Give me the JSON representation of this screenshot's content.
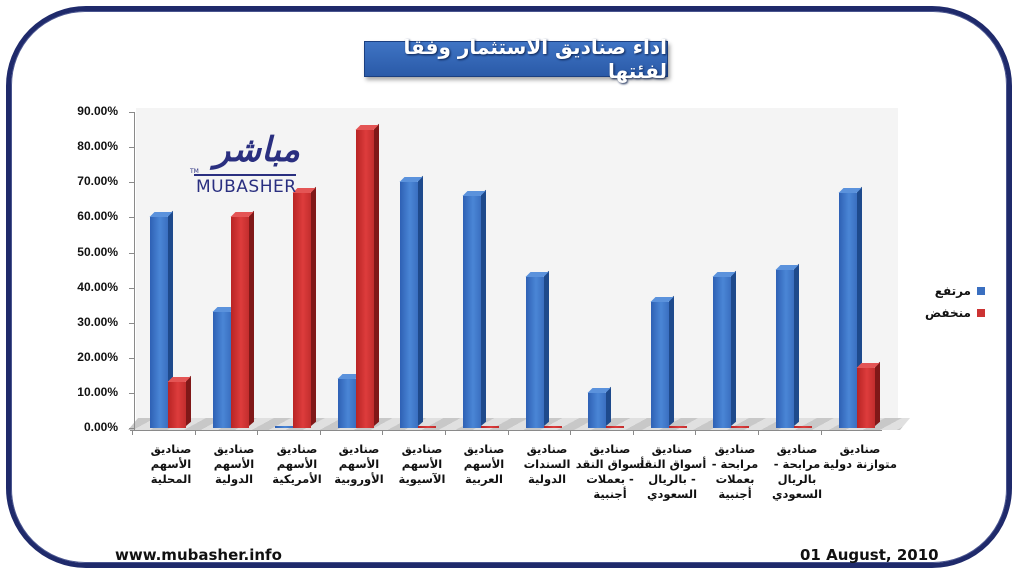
{
  "title": "اداء صناديق الاستثمار وفقا لفئتها",
  "logo": {
    "arabic": "مباشر",
    "english": "MUBASHER",
    "tm": "TM"
  },
  "footer": {
    "url": "www.mubasher.info",
    "date": "01 August, 2010"
  },
  "colors": {
    "up": "#3a6fc0",
    "down": "#cc3333",
    "frame": "#1f2a6b",
    "title_bg": "#3566b6"
  },
  "chart_data": {
    "type": "bar",
    "style": "3d-clustered-column",
    "title": "اداء صناديق الاستثمار وفقا لفئتها",
    "xlabel": "",
    "ylabel": "",
    "ylim": [
      0,
      90
    ],
    "yticks": [
      "0.00%",
      "10.00%",
      "20.00%",
      "30.00%",
      "40.00%",
      "50.00%",
      "60.00%",
      "70.00%",
      "80.00%",
      "90.00%"
    ],
    "grid": false,
    "legend_position": "right",
    "categories": [
      "صناديق الأسهم المحلية",
      "صناديق الأسهم الدولية",
      "صناديق الأسهم الأمريكية",
      "صناديق الأسهم الأوروبية",
      "صناديق الأسهم الآسيوية",
      "صناديق الأسهم العربية",
      "صناديق السندات الدولية",
      "صناديق أسواق النقد - بعملات أجنبية",
      "صناديق أسواق النقد - بالريال السعودي",
      "صناديق مرابحة - بعملات أجنبية",
      "صناديق مرابحة - بالريال السعودي",
      "صناديق متوازنة دولية"
    ],
    "series": [
      {
        "name": "مرتفع",
        "color": "#3a6fc0",
        "values": [
          60,
          33,
          0,
          14,
          70,
          66,
          43,
          10,
          36,
          43,
          45,
          67
        ]
      },
      {
        "name": "منخفض",
        "color": "#cc3333",
        "values": [
          13,
          60,
          67,
          85,
          0,
          0,
          0,
          0,
          0,
          0,
          0,
          17
        ]
      }
    ]
  }
}
